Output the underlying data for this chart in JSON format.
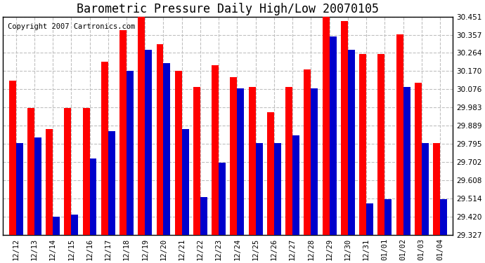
{
  "title": "Barometric Pressure Daily High/Low 20070105",
  "copyright": "Copyright 2007 Cartronics.com",
  "dates": [
    "12/12",
    "12/13",
    "12/14",
    "12/15",
    "12/16",
    "12/17",
    "12/18",
    "12/19",
    "12/20",
    "12/21",
    "12/22",
    "12/23",
    "12/24",
    "12/25",
    "12/26",
    "12/27",
    "12/28",
    "12/29",
    "12/30",
    "12/31",
    "01/01",
    "01/02",
    "01/03",
    "01/04"
  ],
  "highs": [
    30.12,
    29.98,
    29.87,
    29.98,
    29.98,
    30.22,
    30.38,
    30.45,
    30.31,
    30.17,
    30.09,
    30.2,
    30.14,
    30.09,
    29.96,
    30.09,
    30.18,
    30.45,
    30.43,
    30.26,
    30.26,
    30.36,
    30.11,
    29.8
  ],
  "lows": [
    29.8,
    29.83,
    29.42,
    29.43,
    29.72,
    29.86,
    30.17,
    30.28,
    30.21,
    29.87,
    29.52,
    29.7,
    30.08,
    29.8,
    29.8,
    29.84,
    30.08,
    30.35,
    30.28,
    29.49,
    29.51,
    30.09,
    29.8,
    29.51
  ],
  "high_color": "#ff0000",
  "low_color": "#0000cc",
  "bg_color": "#ffffff",
  "plot_bg_color": "#ffffff",
  "grid_color": "#c0c0c0",
  "ymin": 29.327,
  "ymax": 30.451,
  "yticks": [
    29.327,
    29.42,
    29.514,
    29.608,
    29.702,
    29.795,
    29.889,
    29.983,
    30.076,
    30.17,
    30.264,
    30.357,
    30.451
  ],
  "title_fontsize": 12,
  "copyright_fontsize": 7.5,
  "tick_fontsize": 7.5
}
